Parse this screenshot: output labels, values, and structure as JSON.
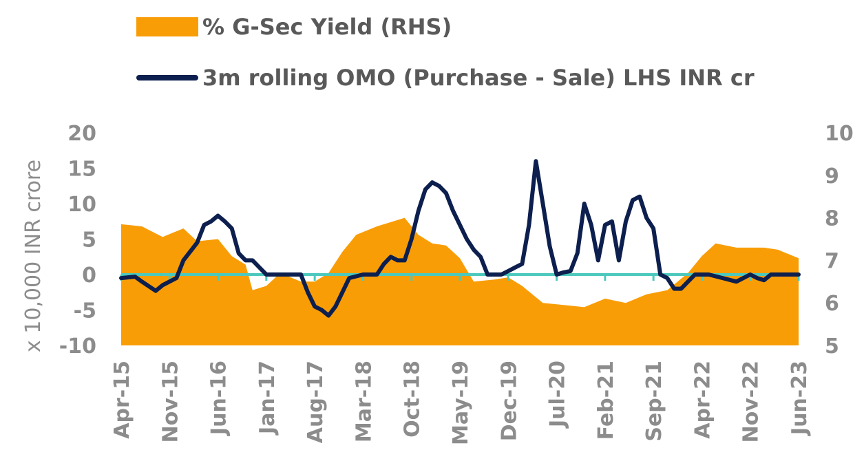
{
  "legend": {
    "area_label": "% G-Sec Yield (RHS)",
    "line_label": "3m rolling OMO (Purchase - Sale) LHS INR cr"
  },
  "colors": {
    "area": "#F99D07",
    "line": "#0D1F4E",
    "zero_axis": "#4CC9BC",
    "text": "#8C8C8C"
  },
  "chart_data": {
    "type": "line",
    "secondary_type": "area",
    "y_left_label": "x 10,000 INR crore",
    "y_left_ticks": [
      "20",
      "15",
      "10",
      "5",
      "0",
      "-5",
      "-10"
    ],
    "y_left_range": [
      -10,
      20
    ],
    "y_right_ticks": [
      "10",
      "9",
      "8",
      "7",
      "6",
      "5"
    ],
    "y_right_range": [
      5,
      10
    ],
    "x_labels": [
      "Apr-15",
      "Nov-15",
      "Jun-16",
      "Jan-17",
      "Aug-17",
      "Mar-18",
      "Oct-18",
      "May-19",
      "Dec-19",
      "Jul-20",
      "Feb-21",
      "Sep-21",
      "Apr-22",
      "Nov-22",
      "Jun-23"
    ],
    "x_range": [
      "2015-04",
      "2023-06"
    ],
    "series": [
      {
        "name": "3m rolling OMO (Purchase - Sale) LHS INR cr",
        "axis": "left",
        "points": [
          [
            "2015-04",
            -0.5
          ],
          [
            "2015-06",
            -0.3
          ],
          [
            "2015-07",
            -1.0
          ],
          [
            "2015-09",
            -2.3
          ],
          [
            "2015-10",
            -1.5
          ],
          [
            "2015-12",
            -0.5
          ],
          [
            "2016-01",
            2.0
          ],
          [
            "2016-03",
            4.5
          ],
          [
            "2016-04",
            7.0
          ],
          [
            "2016-05",
            7.5
          ],
          [
            "2016-06",
            8.3
          ],
          [
            "2016-07",
            7.5
          ],
          [
            "2016-08",
            6.5
          ],
          [
            "2016-09",
            3.0
          ],
          [
            "2016-10",
            2.0
          ],
          [
            "2016-11",
            2.0
          ],
          [
            "2016-12",
            1.0
          ],
          [
            "2017-01",
            0.0
          ],
          [
            "2017-04",
            0.0
          ],
          [
            "2017-06",
            0.0
          ],
          [
            "2017-07",
            -2.5
          ],
          [
            "2017-08",
            -4.5
          ],
          [
            "2017-09",
            -5.0
          ],
          [
            "2017-10",
            -5.8
          ],
          [
            "2017-11",
            -4.5
          ],
          [
            "2017-12",
            -2.5
          ],
          [
            "2018-01",
            -0.5
          ],
          [
            "2018-03",
            0.0
          ],
          [
            "2018-05",
            0.0
          ],
          [
            "2018-06",
            1.5
          ],
          [
            "2018-07",
            2.5
          ],
          [
            "2018-08",
            2.0
          ],
          [
            "2018-09",
            2.0
          ],
          [
            "2018-10",
            5.0
          ],
          [
            "2018-11",
            9.0
          ],
          [
            "2018-12",
            12.0
          ],
          [
            "2019-01",
            13.0
          ],
          [
            "2019-02",
            12.5
          ],
          [
            "2019-03",
            11.5
          ],
          [
            "2019-04",
            9.0
          ],
          [
            "2019-05",
            7.0
          ],
          [
            "2019-06",
            5.0
          ],
          [
            "2019-07",
            3.5
          ],
          [
            "2019-08",
            2.5
          ],
          [
            "2019-09",
            0.0
          ],
          [
            "2019-10",
            0.0
          ],
          [
            "2019-11",
            0.0
          ],
          [
            "2019-12",
            0.5
          ],
          [
            "2020-01",
            1.0
          ],
          [
            "2020-02",
            1.5
          ],
          [
            "2020-03",
            7.0
          ],
          [
            "2020-04",
            16.0
          ],
          [
            "2020-05",
            10.0
          ],
          [
            "2020-06",
            4.0
          ],
          [
            "2020-07",
            0.0
          ],
          [
            "2020-08",
            0.3
          ],
          [
            "2020-09",
            0.5
          ],
          [
            "2020-10",
            3.0
          ],
          [
            "2020-11",
            10.0
          ],
          [
            "2020-12",
            7.0
          ],
          [
            "2021-01",
            2.0
          ],
          [
            "2021-02",
            7.0
          ],
          [
            "2021-03",
            7.5
          ],
          [
            "2021-04",
            2.0
          ],
          [
            "2021-05",
            7.5
          ],
          [
            "2021-06",
            10.5
          ],
          [
            "2021-07",
            11.0
          ],
          [
            "2021-08",
            8.0
          ],
          [
            "2021-09",
            6.5
          ],
          [
            "2021-10",
            0.0
          ],
          [
            "2021-11",
            -0.5
          ],
          [
            "2021-12",
            -2.0
          ],
          [
            "2022-01",
            -2.0
          ],
          [
            "2022-02",
            -1.0
          ],
          [
            "2022-03",
            0.0
          ],
          [
            "2022-05",
            0.0
          ],
          [
            "2022-07",
            -0.5
          ],
          [
            "2022-09",
            -1.0
          ],
          [
            "2022-11",
            0.0
          ],
          [
            "2022-12",
            -0.5
          ],
          [
            "2023-01",
            -0.8
          ],
          [
            "2023-02",
            0.0
          ],
          [
            "2023-06",
            0.0
          ]
        ]
      },
      {
        "name": "% G-Sec Yield (RHS)",
        "axis": "right",
        "points": [
          [
            "2015-04",
            7.85
          ],
          [
            "2015-07",
            7.8
          ],
          [
            "2015-10",
            7.55
          ],
          [
            "2016-01",
            7.75
          ],
          [
            "2016-03",
            7.45
          ],
          [
            "2016-06",
            7.5
          ],
          [
            "2016-08",
            7.1
          ],
          [
            "2016-10",
            6.9
          ],
          [
            "2016-11",
            6.3
          ],
          [
            "2017-01",
            6.4
          ],
          [
            "2017-03",
            6.7
          ],
          [
            "2017-06",
            6.5
          ],
          [
            "2017-08",
            6.5
          ],
          [
            "2017-10",
            6.7
          ],
          [
            "2017-12",
            7.2
          ],
          [
            "2018-02",
            7.6
          ],
          [
            "2018-05",
            7.8
          ],
          [
            "2018-09",
            8.0
          ],
          [
            "2018-11",
            7.6
          ],
          [
            "2019-01",
            7.4
          ],
          [
            "2019-03",
            7.35
          ],
          [
            "2019-05",
            7.05
          ],
          [
            "2019-07",
            6.5
          ],
          [
            "2019-10",
            6.55
          ],
          [
            "2019-12",
            6.6
          ],
          [
            "2020-02",
            6.4
          ],
          [
            "2020-05",
            6.0
          ],
          [
            "2020-08",
            5.95
          ],
          [
            "2020-11",
            5.9
          ],
          [
            "2021-02",
            6.1
          ],
          [
            "2021-05",
            6.0
          ],
          [
            "2021-08",
            6.2
          ],
          [
            "2021-11",
            6.3
          ],
          [
            "2022-02",
            6.7
          ],
          [
            "2022-04",
            7.1
          ],
          [
            "2022-06",
            7.4
          ],
          [
            "2022-09",
            7.3
          ],
          [
            "2022-11",
            7.3
          ],
          [
            "2023-01",
            7.3
          ],
          [
            "2023-03",
            7.25
          ],
          [
            "2023-06",
            7.05
          ]
        ]
      }
    ],
    "grid": false,
    "legend_position": "top-left"
  }
}
